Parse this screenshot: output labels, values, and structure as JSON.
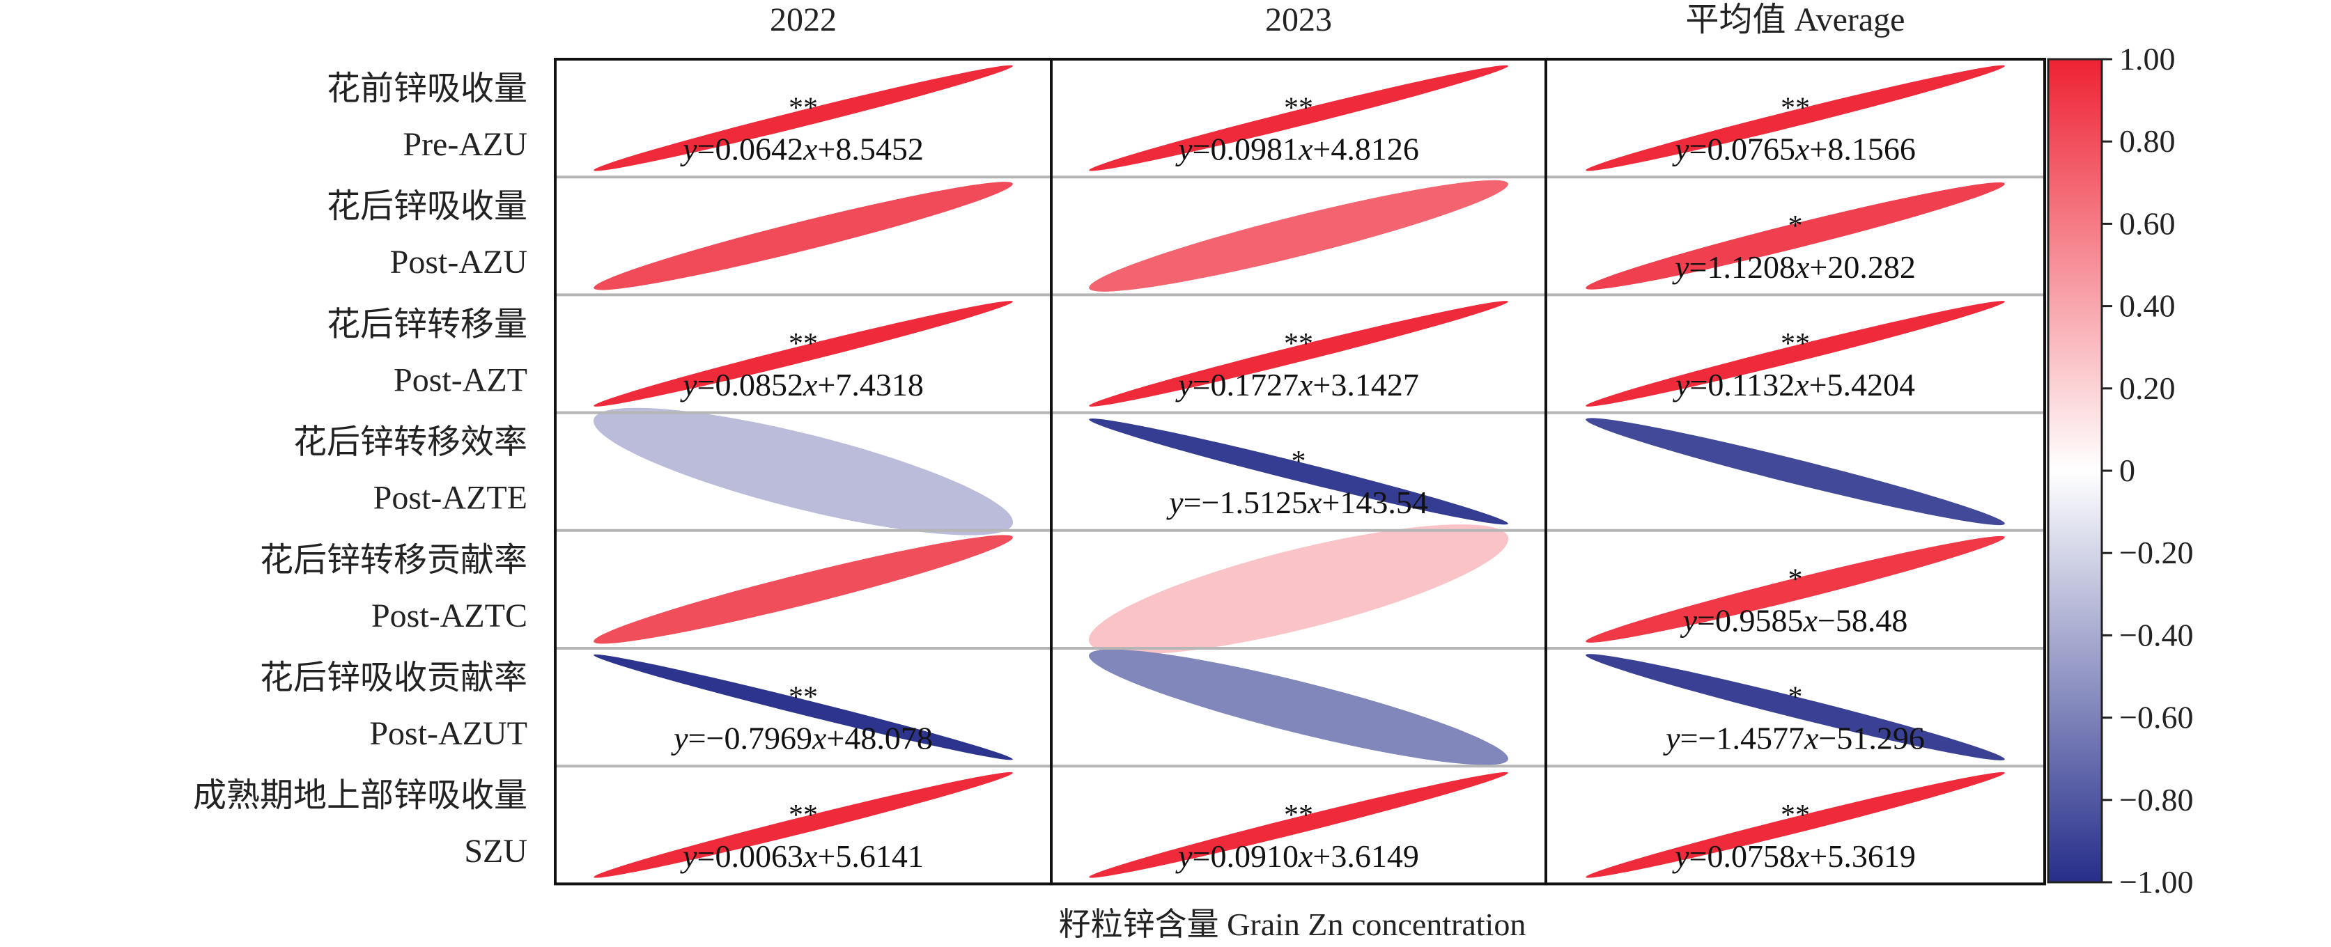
{
  "chart_data": {
    "type": "correlation_ellipse_matrix",
    "title": "",
    "xlabel": "籽粒锌含量 Grain Zn concentration",
    "columns": [
      "2022",
      "2023",
      "平均值 Average"
    ],
    "rows": [
      {
        "zh": "花前锌吸收量",
        "en": "Pre-AZU"
      },
      {
        "zh": "花后锌吸收量",
        "en": "Post-AZU"
      },
      {
        "zh": "花后锌转移量",
        "en": "Post-AZT"
      },
      {
        "zh": "花后锌转移效率",
        "en": "Post-AZTE"
      },
      {
        "zh": "花后锌转移贡献率",
        "en": "Post-AZTC"
      },
      {
        "zh": "花后锌吸收贡献率",
        "en": "Post-AZUT"
      },
      {
        "zh": "成熟期地上部锌吸收量",
        "en": "SZU"
      }
    ],
    "cells": [
      [
        {
          "r": 0.96,
          "sig": "**",
          "eq": "=0.0642",
          "c": "+8.5452"
        },
        {
          "r": 0.96,
          "sig": "**",
          "eq": "=0.0981",
          "c": "+4.8126"
        },
        {
          "r": 0.96,
          "sig": "**",
          "eq": "=0.0765",
          "c": "+8.1566"
        }
      ],
      [
        {
          "r": 0.82,
          "sig": "",
          "eq": "",
          "c": ""
        },
        {
          "r": 0.7,
          "sig": "",
          "eq": "",
          "c": ""
        },
        {
          "r": 0.87,
          "sig": "*",
          "eq": "=1.1208",
          "c": "+20.282"
        }
      ],
      [
        {
          "r": 0.96,
          "sig": "**",
          "eq": "=0.0852",
          "c": "+7.4318"
        },
        {
          "r": 0.96,
          "sig": "**",
          "eq": "=0.1727",
          "c": "+3.1427"
        },
        {
          "r": 0.96,
          "sig": "**",
          "eq": "=0.1132",
          "c": "+5.4204"
        }
      ],
      [
        {
          "r": -0.32,
          "sig": "",
          "eq": "",
          "c": ""
        },
        {
          "r": -0.93,
          "sig": "*",
          "eq": "=−1.5125",
          "c": "+143.54"
        },
        {
          "r": -0.87,
          "sig": "",
          "eq": "",
          "c": ""
        }
      ],
      [
        {
          "r": 0.8,
          "sig": "",
          "eq": "",
          "c": ""
        },
        {
          "r": 0.27,
          "sig": "",
          "eq": "",
          "c": ""
        },
        {
          "r": 0.9,
          "sig": "*",
          "eq": "=0.9585",
          "c": "−58.48"
        }
      ],
      [
        {
          "r": -0.97,
          "sig": "**",
          "eq": "=−0.7969",
          "c": "+48.078"
        },
        {
          "r": -0.58,
          "sig": "",
          "eq": "",
          "c": ""
        },
        {
          "r": -0.91,
          "sig": "*",
          "eq": "=−1.4577",
          "c": "−51.296"
        }
      ],
      [
        {
          "r": 0.96,
          "sig": "**",
          "eq": "=0.0063",
          "c": "+5.6141"
        },
        {
          "r": 0.96,
          "sig": "**",
          "eq": "=0.0910",
          "c": "+3.6149"
        },
        {
          "r": 0.96,
          "sig": "**",
          "eq": "=0.0758",
          "c": "+5.3619"
        }
      ]
    ],
    "colorbar": {
      "min": -1.0,
      "max": 1.0,
      "ticks": [
        "1.00",
        "0.80",
        "0.60",
        "0.40",
        "0.20",
        "0",
        "−0.20",
        "−0.40",
        "−0.60",
        "−0.80",
        "−1.00"
      ],
      "colors": {
        "neg": "#262e8a",
        "mid": "#ffffff",
        "pos": "#ee2233"
      }
    },
    "grid": true
  }
}
